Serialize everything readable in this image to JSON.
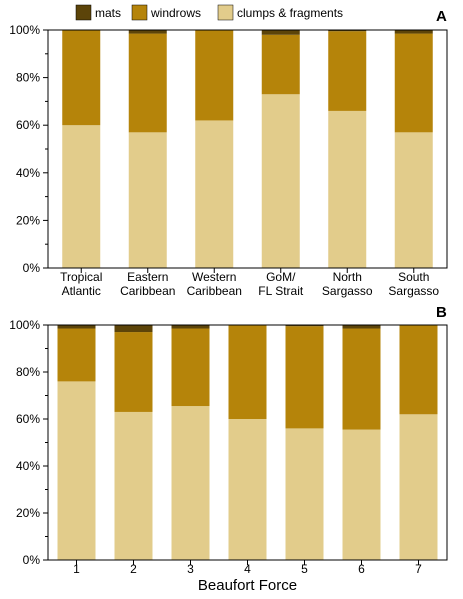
{
  "legend": {
    "items": [
      {
        "label": "mats",
        "color": "#5c4409"
      },
      {
        "label": "windrows",
        "color": "#b5840a"
      },
      {
        "label": "clumps & fragments",
        "color": "#e2cc8b"
      }
    ]
  },
  "colors": {
    "axis": "#000000",
    "background": "#ffffff"
  },
  "chart_data": [
    {
      "type": "bar",
      "stacked": true,
      "panel_label": "A",
      "title": "",
      "xlabel": "",
      "ylabel": "",
      "ylim": [
        0,
        100
      ],
      "yticks": [
        "0%",
        "20%",
        "40%",
        "60%",
        "80%",
        "100%"
      ],
      "categories": [
        [
          "Tropical",
          "Atlantic"
        ],
        [
          "Eastern",
          "Caribbean"
        ],
        [
          "Western",
          "Caribbean"
        ],
        [
          "GoM/",
          "FL Strait"
        ],
        [
          "North",
          "Sargasso"
        ],
        [
          "South",
          "Sargasso"
        ]
      ],
      "series": [
        {
          "name": "clumps & fragments",
          "values": [
            60,
            57,
            62,
            73,
            66,
            57
          ]
        },
        {
          "name": "windrows",
          "values": [
            40,
            41.5,
            38,
            25,
            33.5,
            41.5
          ]
        },
        {
          "name": "mats",
          "values": [
            0,
            1.5,
            0,
            2,
            0.5,
            1.5
          ]
        }
      ],
      "grid": false,
      "legend_position": "top"
    },
    {
      "type": "bar",
      "stacked": true,
      "panel_label": "B",
      "title": "",
      "xlabel": "Beaufort Force",
      "ylabel": "",
      "ylim": [
        0,
        100
      ],
      "yticks": [
        "0%",
        "20%",
        "40%",
        "60%",
        "80%",
        "100%"
      ],
      "categories": [
        [
          "1"
        ],
        [
          "2"
        ],
        [
          "3"
        ],
        [
          "4"
        ],
        [
          "5"
        ],
        [
          "6"
        ],
        [
          "7"
        ]
      ],
      "series": [
        {
          "name": "clumps & fragments",
          "values": [
            76,
            63,
            65.5,
            60,
            56,
            55.5,
            62
          ]
        },
        {
          "name": "windrows",
          "values": [
            22.5,
            34,
            33,
            40,
            43.5,
            43,
            38
          ]
        },
        {
          "name": "mats",
          "values": [
            1.5,
            3,
            1.5,
            0,
            0.5,
            1.5,
            0
          ]
        }
      ],
      "grid": false,
      "legend_position": "top"
    }
  ]
}
